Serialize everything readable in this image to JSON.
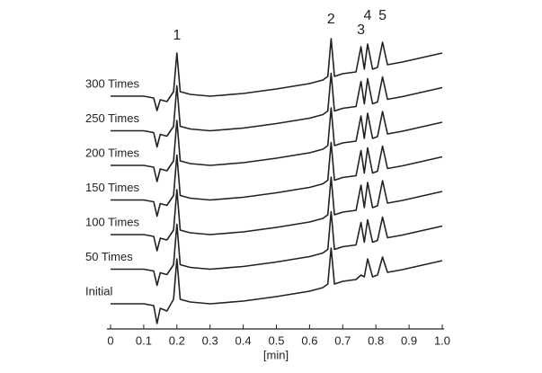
{
  "chart_data": {
    "type": "line",
    "x_label": "[min]",
    "xlim": [
      0,
      1
    ],
    "xticks": [
      0,
      0.1,
      0.2,
      0.3,
      0.4,
      0.5,
      0.6,
      0.7,
      0.8,
      0.9,
      {
        "value": 1,
        "label": "1.0"
      }
    ],
    "x": [
      0,
      0.1,
      0.13,
      0.14,
      0.15,
      0.17,
      0.19,
      0.2,
      0.21,
      0.24,
      0.3,
      0.4,
      0.5,
      0.6,
      0.64,
      0.655,
      0.665,
      0.675,
      0.7,
      0.74,
      0.755,
      0.765,
      0.775,
      0.79,
      0.805,
      0.82,
      0.835,
      0.88,
      1.0
    ],
    "color": "#222222",
    "series": [
      {
        "name": "Initial",
        "values": [
          0,
          0,
          -2,
          -22,
          -5,
          -8,
          5,
          50,
          5,
          2,
          0,
          3,
          8,
          14,
          18,
          22,
          62,
          22,
          25,
          27,
          32,
          30,
          50,
          30,
          32,
          52,
          35,
          38,
          48
        ]
      },
      {
        "name": "50 Times",
        "values": [
          0,
          0,
          -2,
          -18,
          -4,
          -6,
          5,
          50,
          5,
          2,
          0,
          3,
          8,
          14,
          18,
          22,
          64,
          22,
          25,
          27,
          52,
          30,
          55,
          30,
          32,
          58,
          35,
          38,
          48
        ]
      },
      {
        "name": "100 Times",
        "values": [
          0,
          0,
          -2,
          -18,
          -4,
          -6,
          5,
          50,
          5,
          2,
          0,
          3,
          8,
          14,
          18,
          22,
          64,
          22,
          25,
          27,
          55,
          30,
          58,
          30,
          32,
          60,
          35,
          38,
          48
        ]
      },
      {
        "name": "150 Times",
        "values": [
          0,
          0,
          -2,
          -18,
          -4,
          -6,
          5,
          50,
          5,
          2,
          0,
          3,
          8,
          14,
          18,
          22,
          64,
          22,
          25,
          27,
          55,
          30,
          58,
          30,
          32,
          60,
          35,
          38,
          48
        ]
      },
      {
        "name": "200 Times",
        "values": [
          0,
          0,
          -2,
          -18,
          -4,
          -6,
          5,
          50,
          5,
          2,
          0,
          3,
          8,
          14,
          18,
          22,
          64,
          22,
          25,
          27,
          55,
          30,
          58,
          30,
          32,
          60,
          35,
          38,
          48
        ]
      },
      {
        "name": "250 Times",
        "values": [
          0,
          0,
          -2,
          -18,
          -4,
          -6,
          5,
          50,
          5,
          2,
          0,
          3,
          8,
          14,
          18,
          22,
          64,
          22,
          25,
          27,
          55,
          30,
          58,
          30,
          32,
          60,
          35,
          38,
          48
        ]
      },
      {
        "name": "300 Times",
        "values": [
          0,
          0,
          -2,
          -16,
          -4,
          -6,
          5,
          48,
          5,
          2,
          0,
          3,
          8,
          14,
          18,
          22,
          64,
          22,
          25,
          27,
          55,
          30,
          58,
          30,
          32,
          60,
          35,
          38,
          48
        ]
      }
    ],
    "annotations": [
      {
        "text": "1",
        "x": 0.2
      },
      {
        "text": "2",
        "x": 0.665
      },
      {
        "text": "3",
        "x": 0.755
      },
      {
        "text": "4",
        "x": 0.775
      },
      {
        "text": "5",
        "x": 0.82
      }
    ]
  }
}
